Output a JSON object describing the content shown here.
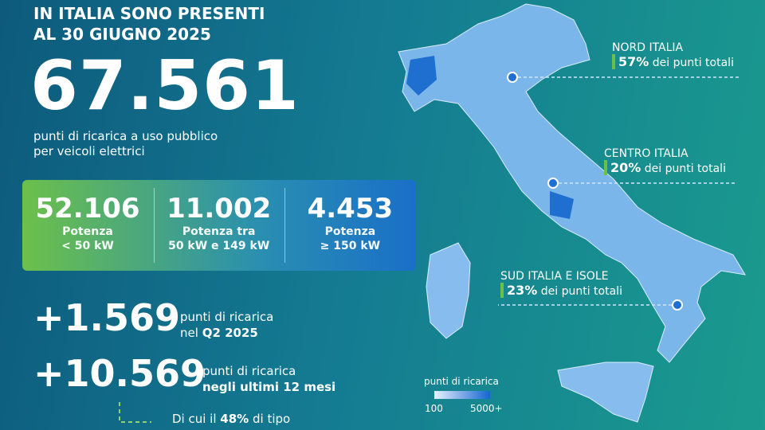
{
  "header": {
    "line1": "IN ITALIA SONO PRESENTI",
    "line2": "AL 30 GIUGNO 2025"
  },
  "total": {
    "value": "67.561",
    "caption_line1": "punti di ricarica a uso pubblico",
    "caption_line2": "per veicoli elettrici"
  },
  "power_boxes": [
    {
      "value": "52.106",
      "label_line1": "Potenza",
      "label_line2": "< 50 kW"
    },
    {
      "value": "11.002",
      "label_line1": "Potenza tra",
      "label_line2": "50 kW e 149 kW"
    },
    {
      "value": "4.453",
      "label_line1": "Potenza",
      "label_line2": "≥ 150 kW"
    }
  ],
  "growth": [
    {
      "value": "+1.569",
      "line1": "punti di ricarica",
      "line2_prefix": "nel",
      "line2_bold": "Q2 2025"
    },
    {
      "value": "+10.569",
      "line1": "punti di ricarica",
      "line2_bold": "negli ultimi 12 mesi"
    }
  ],
  "footnote": {
    "prefix": "Di cui il",
    "bold": "48%",
    "suffix": "di tipo"
  },
  "regions": [
    {
      "name": "NORD ITALIA",
      "share": "57%",
      "share_text": "dei punti totali"
    },
    {
      "name": "CENTRO ITALIA",
      "share": "20%",
      "share_text": "dei punti totali"
    },
    {
      "name": "SUD ITALIA E ISOLE",
      "share": "23%",
      "share_text": "dei punti totali"
    }
  ],
  "legend": {
    "title": "punti di ricarica",
    "min": "100",
    "max": "5000+"
  }
}
